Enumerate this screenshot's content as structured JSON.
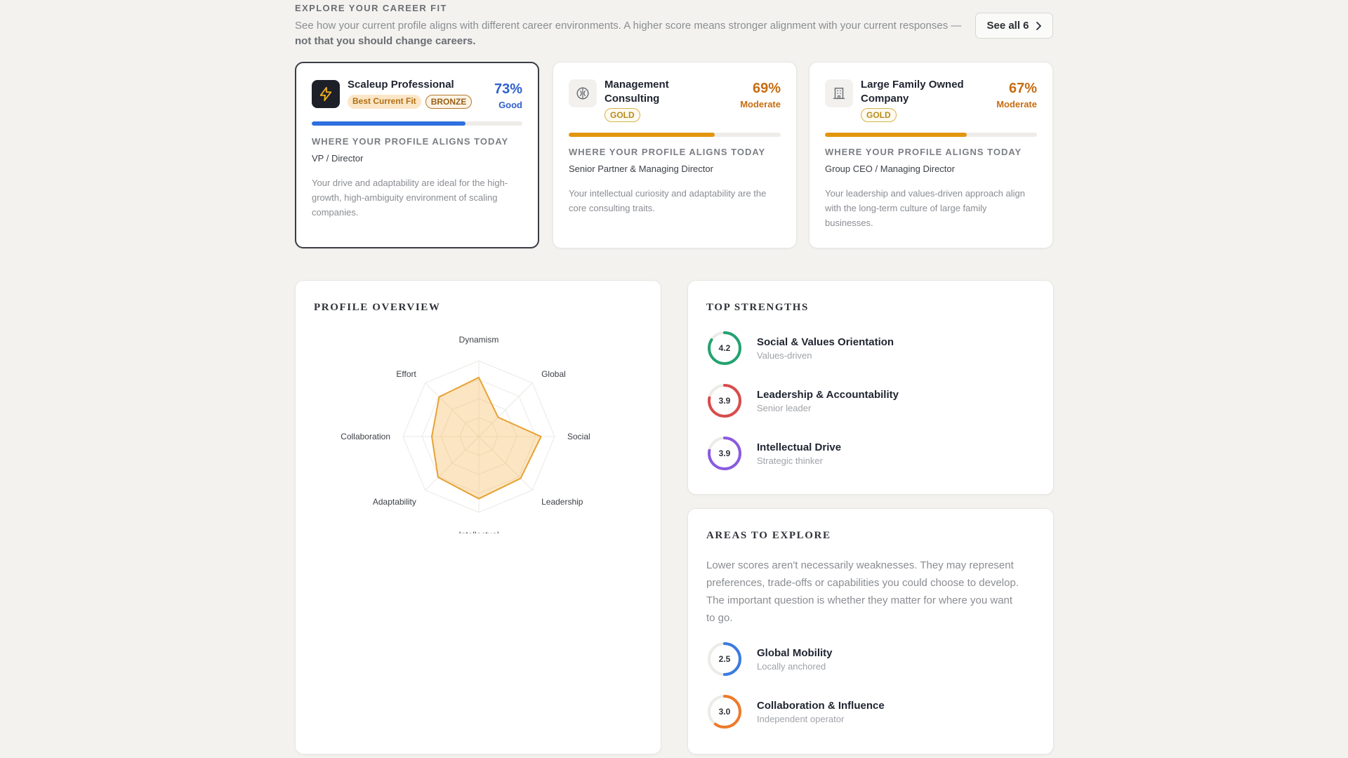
{
  "header": {
    "section_label": "EXPLORE YOUR CAREER FIT",
    "intro_text": "See how your current profile aligns with different career environments. A higher score means stronger alignment with your current responses — ",
    "intro_bold": "not that you should change careers.",
    "see_all_label": "See all 6"
  },
  "cards": [
    {
      "title": "Scaleup Professional",
      "badges": [
        "Best Current Fit",
        "BRONZE"
      ],
      "percent": "73%",
      "rating": "Good",
      "progress": 0.73,
      "color": "#2f6fdf",
      "aligns_label": "WHERE YOUR PROFILE ALIGNS TODAY",
      "role": "VP / Director",
      "description": "Your drive and adaptability are ideal for the high-growth, high-ambiguity environment of scaling companies."
    },
    {
      "title": "Management Consulting",
      "badges": [
        "GOLD"
      ],
      "percent": "69%",
      "rating": "Moderate",
      "progress": 0.69,
      "color": "#e3950f",
      "aligns_label": "WHERE YOUR PROFILE ALIGNS TODAY",
      "role": "Senior Partner & Managing Director",
      "description": "Your intellectual curiosity and adaptability are the core consulting traits."
    },
    {
      "title": "Large Family Owned Company",
      "badges": [
        "GOLD"
      ],
      "percent": "67%",
      "rating": "Moderate",
      "progress": 0.67,
      "color": "#e3950f",
      "aligns_label": "WHERE YOUR PROFILE ALIGNS TODAY",
      "role": "Group CEO / Managing Director",
      "description": "Your leadership and values-driven approach align with the long-term culture of large family businesses."
    }
  ],
  "profile_overview": {
    "heading": "PROFILE OVERVIEW",
    "axes": [
      "Dynamism",
      "Global",
      "Social",
      "Leadership",
      "Intellectual",
      "Adaptability",
      "Collaboration",
      "Effort"
    ]
  },
  "top_strengths": {
    "heading": "TOP STRENGTHS",
    "items": [
      {
        "score": "4.2",
        "value": 4.2,
        "name": "Social & Values Orientation",
        "sub": "Values-driven",
        "color": "#22a371"
      },
      {
        "score": "3.9",
        "value": 3.9,
        "name": "Leadership & Accountability",
        "sub": "Senior leader",
        "color": "#d94c4c"
      },
      {
        "score": "3.9",
        "value": 3.9,
        "name": "Intellectual Drive",
        "sub": "Strategic thinker",
        "color": "#8a5be0"
      }
    ]
  },
  "areas_to_explore": {
    "heading": "AREAS TO EXPLORE",
    "text": "Lower scores aren't necessarily weaknesses. They may represent preferences, trade-offs or capabilities you could choose to develop. The important question is whether they matter for where you want to go.",
    "items": [
      {
        "score": "2.5",
        "value": 2.5,
        "name": "Global Mobility",
        "sub": "Locally anchored",
        "color": "#3b7be0"
      },
      {
        "score": "3.0",
        "value": 3.0,
        "name": "Collaboration & Influence",
        "sub": "Independent operator",
        "color": "#ec7a2a"
      }
    ]
  }
}
